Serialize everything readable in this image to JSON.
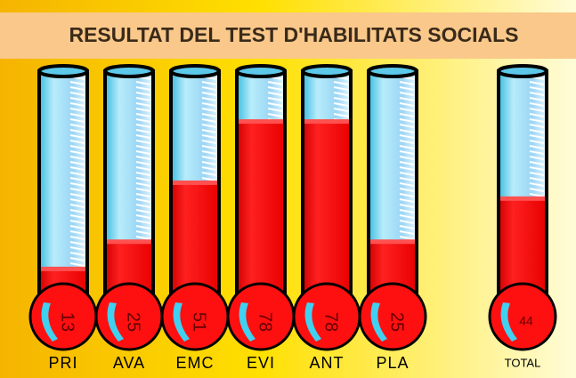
{
  "chart_data": {
    "type": "thermometer",
    "title": "RESULTAT DEL TEST D'HABILITATS SOCIALS",
    "categories": [
      "PRI",
      "AVA",
      "EMC",
      "EVI",
      "ANT",
      "PLA"
    ],
    "values": [
      13,
      25,
      51,
      78,
      78,
      25
    ],
    "total": {
      "label": "TOTAL",
      "value": 44
    },
    "ylim": [
      0,
      100
    ],
    "color": "#ff1010"
  }
}
